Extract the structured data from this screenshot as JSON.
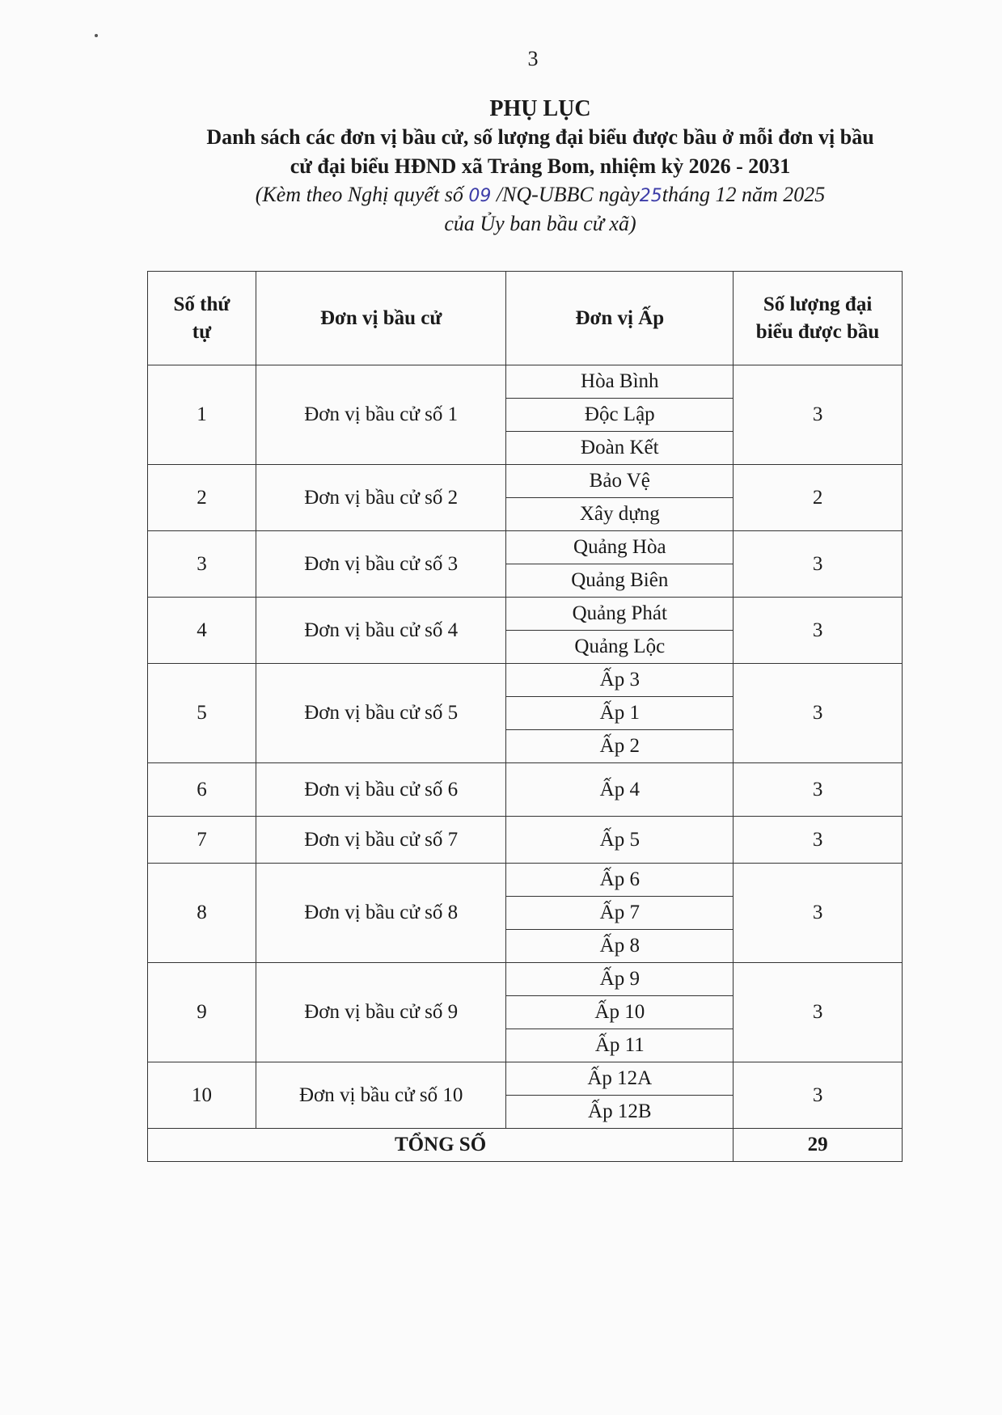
{
  "page_number": "3",
  "title": "PHỤ LỤC",
  "subtitle_line1": "Danh sách các đơn vị bầu cử, số lượng đại biểu được bầu ở mỗi đơn vị bầu",
  "subtitle_line2": "cử đại biểu HĐND xã Trảng Bom, nhiệm kỳ 2026 - 2031",
  "note": {
    "part1": "(Kèm theo Nghị quyết số ",
    "handwritten_number": "09",
    "part2": " /NQ-UBBC ngày",
    "handwritten_day": "25",
    "part3": "tháng 12 năm 2025",
    "line2": "của Ủy ban bầu cử xã)"
  },
  "table": {
    "headers": [
      "Số thứ tự",
      "Đơn vị bầu cử",
      "Đơn vị Ấp",
      "Số lượng đại biểu được bầu"
    ],
    "rows": [
      {
        "stt": "1",
        "unit": "Đơn vị bầu cử số 1",
        "aps": [
          "Hòa Bình",
          "Độc Lập",
          "Đoàn Kết"
        ],
        "count": "3"
      },
      {
        "stt": "2",
        "unit": "Đơn vị bầu cử số 2",
        "aps": [
          "Bảo Vệ",
          "Xây dựng"
        ],
        "count": "2"
      },
      {
        "stt": "3",
        "unit": "Đơn vị bầu cử số 3",
        "aps": [
          "Quảng Hòa",
          "Quảng Biên"
        ],
        "count": "3"
      },
      {
        "stt": "4",
        "unit": "Đơn vị bầu cử số 4",
        "aps": [
          "Quảng Phát",
          "Quảng Lộc"
        ],
        "count": "3"
      },
      {
        "stt": "5",
        "unit": "Đơn vị bầu cử số 5",
        "aps": [
          "Ấp 3",
          "Ấp 1",
          "Ấp 2"
        ],
        "count": "3"
      },
      {
        "stt": "6",
        "unit": "Đơn vị bầu cử số 6",
        "aps": [
          "Ấp 4"
        ],
        "count": "3"
      },
      {
        "stt": "7",
        "unit": "Đơn vị bầu cử số 7",
        "aps": [
          "Ấp 5"
        ],
        "count": "3"
      },
      {
        "stt": "8",
        "unit": "Đơn vị bầu cử số 8",
        "aps": [
          "Ấp 6",
          "Ấp 7",
          "Ấp 8"
        ],
        "count": "3"
      },
      {
        "stt": "9",
        "unit": "Đơn vị bầu cử số 9",
        "aps": [
          "Ấp 9",
          "Ấp 10",
          "Ấp 11"
        ],
        "count": "3"
      },
      {
        "stt": "10",
        "unit": "Đơn vị bầu cử số 10",
        "aps": [
          "Ấp 12A",
          "Ấp 12B"
        ],
        "count": "3"
      }
    ],
    "total_label": "TỔNG SỐ",
    "total_value": "29"
  }
}
